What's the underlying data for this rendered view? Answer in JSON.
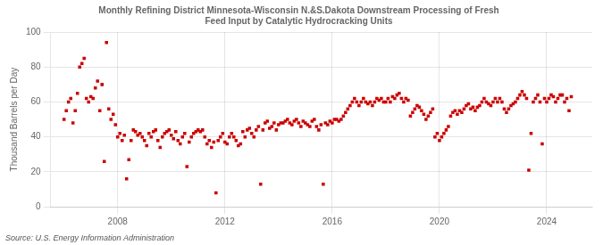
{
  "chart_data": {
    "type": "scatter",
    "title": "Monthly Refining District Minnesota-Wisconsin N.&S.Dakota Downstream Processing of Fresh\nFeed Input by Catalytic Hydrocracking Units",
    "ylabel": "Thousand Barrels per Day",
    "annotations": [
      "Source: U.S. Energy Information Administration"
    ],
    "color": "#cc0000",
    "marker": "square",
    "grid": true,
    "xlim": [
      2005.5,
      2025.7
    ],
    "xticks": [
      2008,
      2012,
      2016,
      2020,
      2024
    ],
    "ylim": [
      0,
      100
    ],
    "yticks": [
      0,
      20,
      40,
      60,
      80,
      100
    ],
    "x": [
      2006.0,
      2006.083,
      2006.167,
      2006.25,
      2006.333,
      2006.417,
      2006.5,
      2006.583,
      2006.667,
      2006.75,
      2006.833,
      2006.917,
      2007.0,
      2007.083,
      2007.167,
      2007.25,
      2007.333,
      2007.417,
      2007.5,
      2007.583,
      2007.667,
      2007.75,
      2007.833,
      2007.917,
      2008.0,
      2008.083,
      2008.167,
      2008.25,
      2008.333,
      2008.417,
      2008.5,
      2008.583,
      2008.667,
      2008.75,
      2008.833,
      2008.917,
      2009.0,
      2009.083,
      2009.167,
      2009.25,
      2009.333,
      2009.417,
      2009.5,
      2009.583,
      2009.667,
      2009.75,
      2009.833,
      2009.917,
      2010.0,
      2010.083,
      2010.167,
      2010.25,
      2010.333,
      2010.417,
      2010.5,
      2010.583,
      2010.667,
      2010.75,
      2010.833,
      2010.917,
      2011.0,
      2011.083,
      2011.167,
      2011.25,
      2011.333,
      2011.417,
      2011.5,
      2011.583,
      2011.667,
      2011.75,
      2011.833,
      2011.917,
      2012.0,
      2012.083,
      2012.167,
      2012.25,
      2012.333,
      2012.417,
      2012.5,
      2012.583,
      2012.667,
      2012.75,
      2012.833,
      2012.917,
      2013.0,
      2013.083,
      2013.167,
      2013.25,
      2013.333,
      2013.417,
      2013.5,
      2013.583,
      2013.667,
      2013.75,
      2013.833,
      2013.917,
      2014.0,
      2014.083,
      2014.167,
      2014.25,
      2014.333,
      2014.417,
      2014.5,
      2014.583,
      2014.667,
      2014.75,
      2014.833,
      2014.917,
      2015.0,
      2015.083,
      2015.167,
      2015.25,
      2015.333,
      2015.417,
      2015.5,
      2015.583,
      2015.667,
      2015.75,
      2015.833,
      2015.917,
      2016.0,
      2016.083,
      2016.167,
      2016.25,
      2016.333,
      2016.417,
      2016.5,
      2016.583,
      2016.667,
      2016.75,
      2016.833,
      2016.917,
      2017.0,
      2017.083,
      2017.167,
      2017.25,
      2017.333,
      2017.417,
      2017.5,
      2017.583,
      2017.667,
      2017.75,
      2017.833,
      2017.917,
      2018.0,
      2018.083,
      2018.167,
      2018.25,
      2018.333,
      2018.417,
      2018.5,
      2018.583,
      2018.667,
      2018.75,
      2018.833,
      2018.917,
      2019.0,
      2019.083,
      2019.167,
      2019.25,
      2019.333,
      2019.417,
      2019.5,
      2019.583,
      2019.667,
      2019.75,
      2019.833,
      2019.917,
      2020.0,
      2020.083,
      2020.167,
      2020.25,
      2020.333,
      2020.417,
      2020.5,
      2020.583,
      2020.667,
      2020.75,
      2020.833,
      2020.917,
      2021.0,
      2021.083,
      2021.167,
      2021.25,
      2021.333,
      2021.417,
      2021.5,
      2021.583,
      2021.667,
      2021.75,
      2021.833,
      2021.917,
      2022.0,
      2022.083,
      2022.167,
      2022.25,
      2022.333,
      2022.417,
      2022.5,
      2022.583,
      2022.667,
      2022.75,
      2022.833,
      2022.917,
      2023.0,
      2023.083,
      2023.167,
      2023.25,
      2023.333,
      2023.417,
      2023.5,
      2023.583,
      2023.667,
      2023.75,
      2023.833,
      2023.917,
      2024.0,
      2024.083,
      2024.167,
      2024.25,
      2024.333,
      2024.417,
      2024.5,
      2024.583,
      2024.667,
      2024.75,
      2024.833,
      2024.917
    ],
    "values": [
      50,
      55,
      60,
      62,
      48,
      55,
      65,
      80,
      82,
      85,
      62,
      60,
      63,
      62,
      68,
      72,
      55,
      70,
      26,
      94,
      56,
      50,
      53,
      47,
      40,
      42,
      38,
      41,
      16,
      27,
      38,
      44,
      43,
      41,
      42,
      40,
      38,
      35,
      42,
      40,
      43,
      44,
      38,
      34,
      40,
      42,
      43,
      44,
      41,
      39,
      43,
      38,
      36,
      40,
      42,
      23,
      37,
      40,
      42,
      43,
      44,
      43,
      44,
      40,
      36,
      38,
      34,
      37,
      8,
      38,
      40,
      42,
      37,
      36,
      40,
      42,
      40,
      38,
      35,
      36,
      43,
      40,
      44,
      45,
      42,
      40,
      44,
      46,
      13,
      44,
      48,
      49,
      45,
      46,
      48,
      44,
      47,
      48,
      48,
      49,
      50,
      48,
      47,
      49,
      50,
      48,
      46,
      49,
      48,
      47,
      46,
      49,
      50,
      46,
      44,
      47,
      13,
      48,
      47,
      49,
      48,
      50,
      50,
      49,
      50,
      52,
      54,
      56,
      58,
      60,
      62,
      60,
      58,
      60,
      62,
      60,
      59,
      60,
      58,
      60,
      62,
      61,
      62,
      60,
      60,
      62,
      60,
      63,
      62,
      64,
      65,
      62,
      60,
      62,
      61,
      52,
      54,
      56,
      58,
      57,
      55,
      53,
      50,
      52,
      54,
      56,
      40,
      42,
      38,
      40,
      42,
      44,
      46,
      52,
      54,
      55,
      53,
      55,
      54,
      56,
      58,
      59,
      56,
      57,
      55,
      57,
      58,
      60,
      62,
      60,
      59,
      58,
      60,
      62,
      60,
      62,
      60,
      56,
      54,
      56,
      58,
      59,
      60,
      62,
      64,
      66,
      64,
      62,
      21,
      42,
      60,
      62,
      64,
      60,
      36,
      62,
      60,
      62,
      64,
      63,
      60,
      62,
      64,
      64,
      60,
      62,
      55,
      63
    ]
  }
}
